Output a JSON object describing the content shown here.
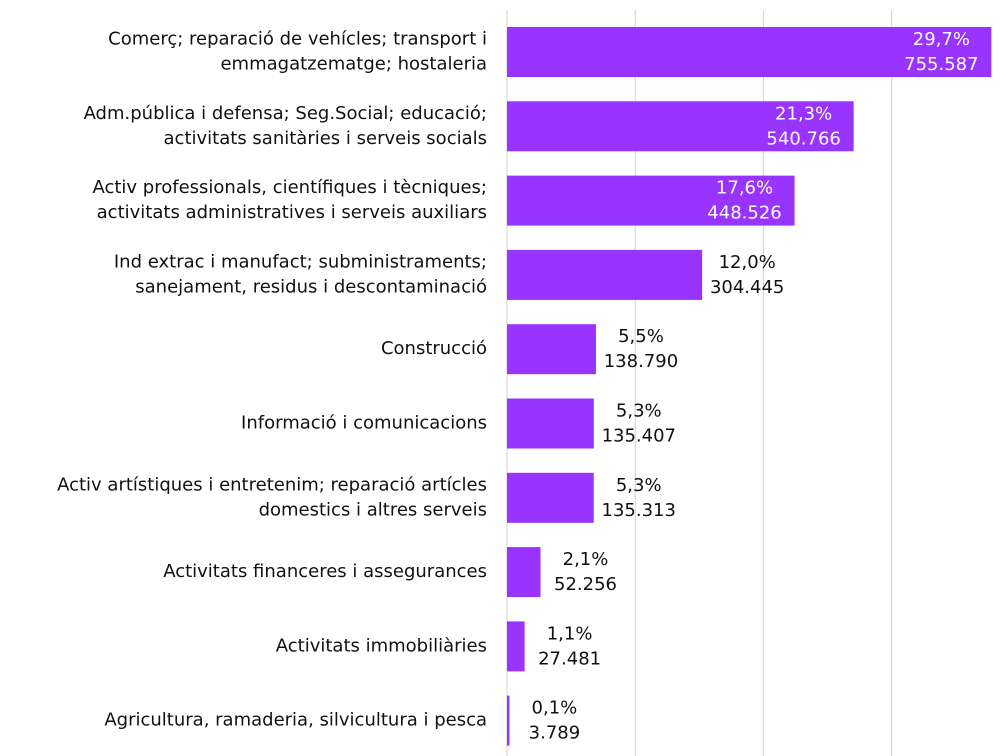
{
  "chart_data": {
    "type": "bar",
    "orientation": "horizontal",
    "categories": [
      [
        "Comerç; reparació de vehícles; transport i",
        "emmagatzematge; hostaleria"
      ],
      [
        "Adm.pública i defensa; Seg.Social; educació;",
        "activitats sanitàries i serveis socials"
      ],
      [
        "Activ professionals, científiques i tècniques;",
        "activitats administratives i serveis auxiliars"
      ],
      [
        "Ind extrac i manufact; subministraments;",
        "sanejament, residus i descontaminació"
      ],
      [
        "Construcció"
      ],
      [
        "Informació i comunicacions"
      ],
      [
        "Activ artístiques i entretenim; reparació artícles",
        "domestics i altres serveis"
      ],
      [
        "Activitats financeres i assegurances"
      ],
      [
        "Activitats immobiliàries"
      ],
      [
        "Agricultura, ramaderia, silvicultura i pesca"
      ]
    ],
    "values": [
      755587,
      540766,
      448526,
      304445,
      138790,
      135407,
      135313,
      52256,
      27481,
      3789
    ],
    "value_labels": [
      "755.587",
      "540.766",
      "448.526",
      "304.445",
      "138.790",
      "135.407",
      "135.313",
      "52.256",
      "27.481",
      "3.789"
    ],
    "percent_labels": [
      "29,7%",
      "21,3%",
      "17,6%",
      "12,0%",
      "5,5%",
      "5,3%",
      "5,3%",
      "2,1%",
      "1,1%",
      "0,1%"
    ],
    "color": "#9933ff",
    "xlim": [
      0,
      780000
    ],
    "xticks": [
      0,
      200000,
      400000,
      600000
    ],
    "grid": true
  }
}
